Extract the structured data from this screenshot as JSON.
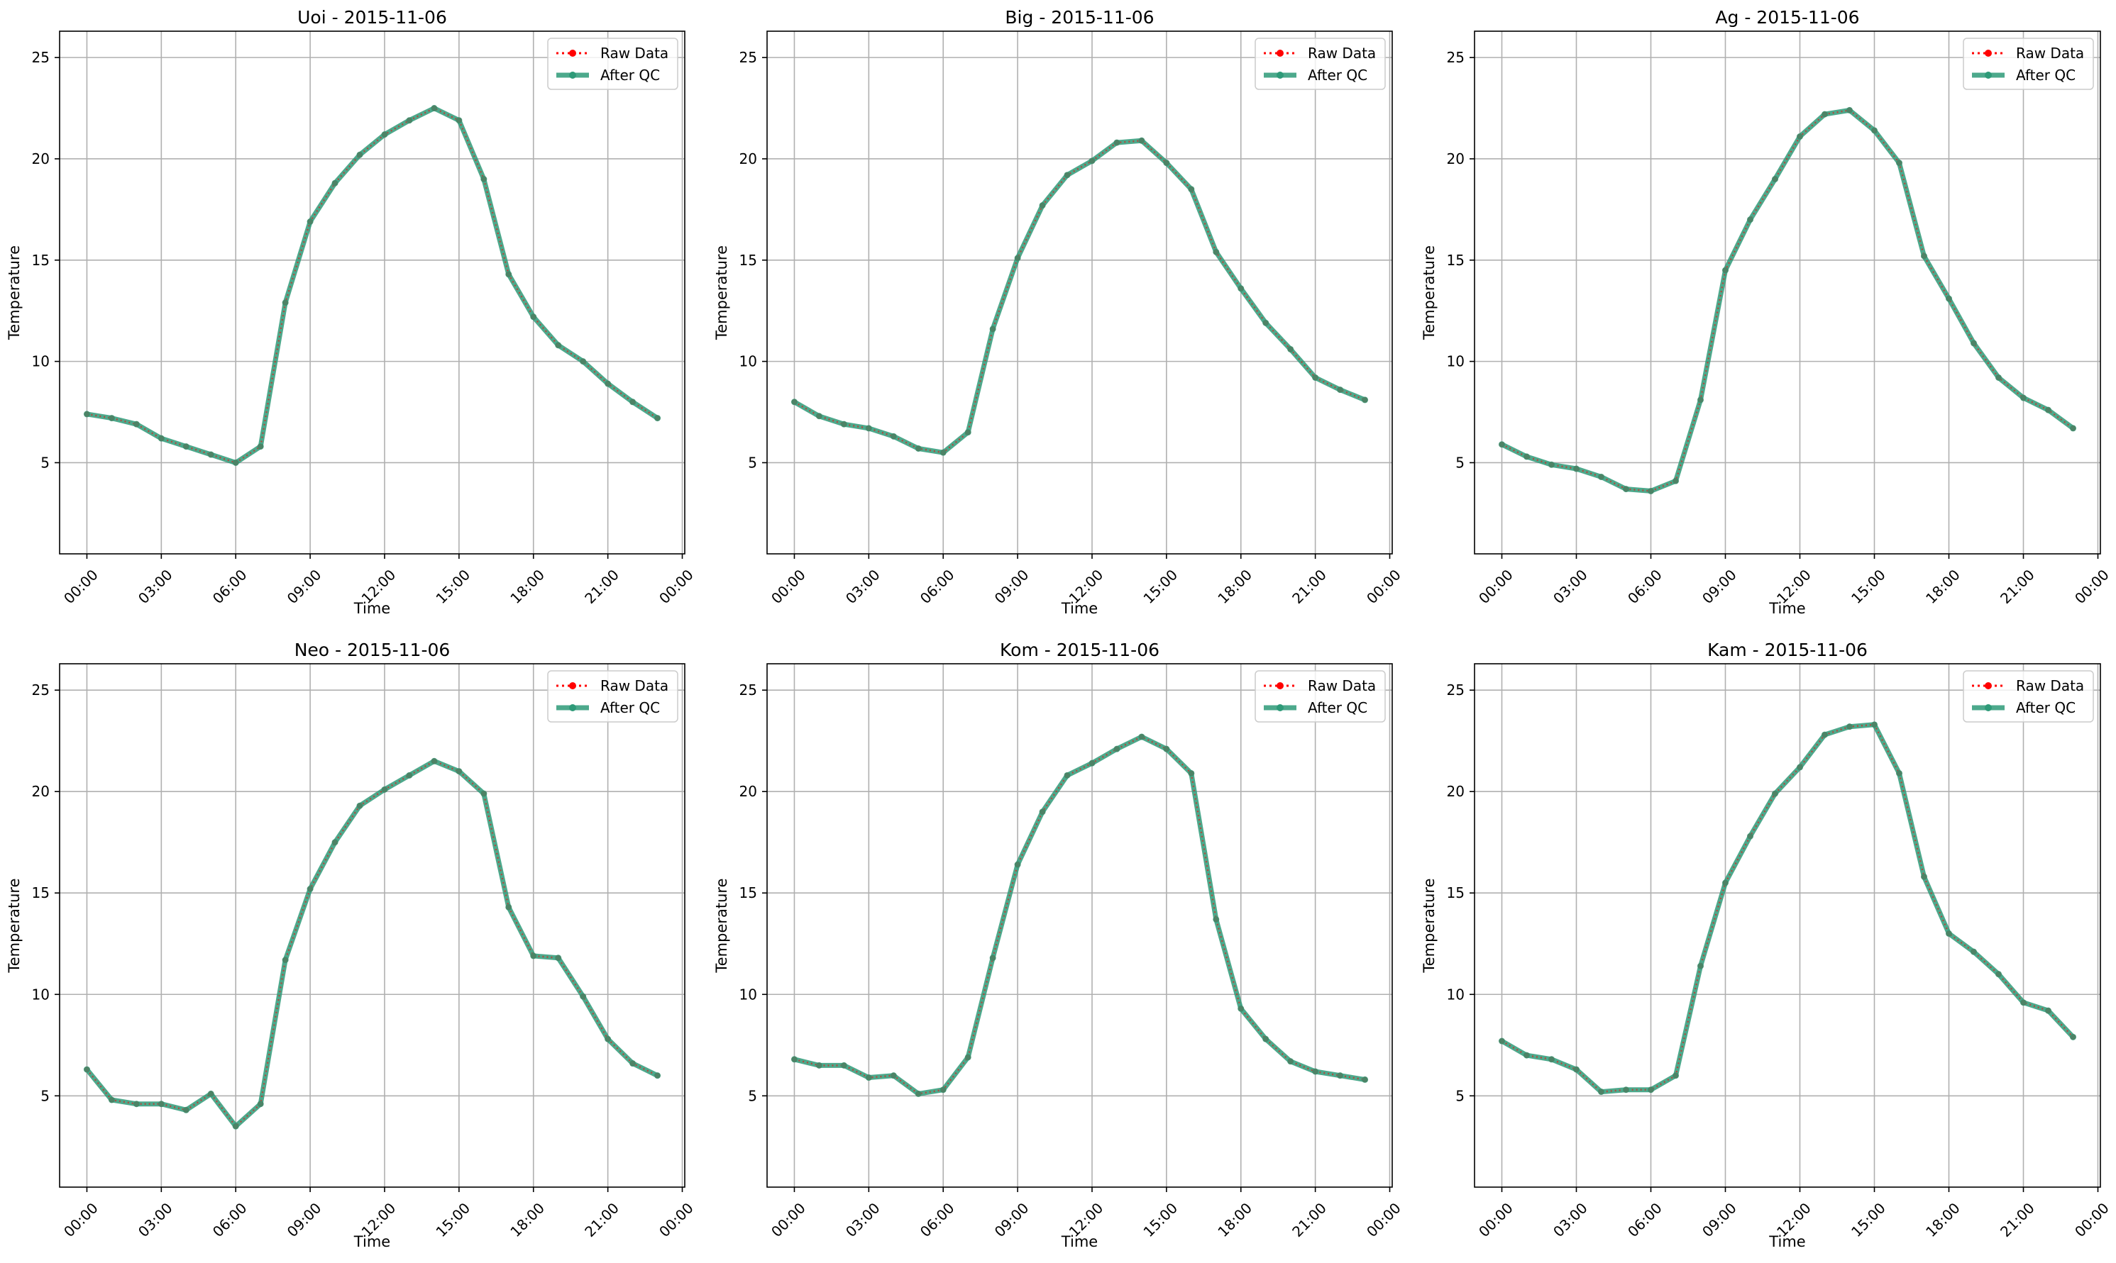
{
  "legend": {
    "raw_label": "Raw Data",
    "qc_label": "After QC"
  },
  "colors": {
    "raw": "#ff0000",
    "qc": "#2e9a78",
    "grid": "#b0b0b0"
  },
  "chart_data": [
    {
      "type": "line",
      "title": "Uoi - 2015-11-06",
      "xlabel": "Time",
      "ylabel": "Temperature",
      "x_unit": "hour",
      "xlim": [
        -1.1,
        24.1
      ],
      "ylim": [
        0.5,
        26.3
      ],
      "xticks": [
        0,
        3,
        6,
        9,
        12,
        15,
        18,
        21,
        24
      ],
      "xtick_labels": [
        "00:00",
        "03:00",
        "06:00",
        "09:00",
        "12:00",
        "15:00",
        "18:00",
        "21:00",
        "00:00"
      ],
      "yticks": [
        5,
        10,
        15,
        20,
        25
      ],
      "grid": true,
      "legend_position": "top-right",
      "x": [
        0,
        1,
        2,
        3,
        4,
        5,
        6,
        7,
        8,
        9,
        10,
        11,
        12,
        13,
        14,
        15,
        16,
        17,
        18,
        19,
        20,
        21,
        22,
        23
      ],
      "series": [
        {
          "name": "Raw Data",
          "values": [
            7.4,
            7.2,
            6.9,
            6.2,
            5.8,
            5.4,
            5.0,
            5.8,
            12.9,
            16.9,
            18.8,
            20.2,
            21.2,
            21.9,
            22.5,
            21.9,
            19.0,
            14.3,
            12.2,
            10.8,
            10.0,
            8.9,
            8.0,
            7.2
          ]
        },
        {
          "name": "After QC",
          "values": [
            7.4,
            7.2,
            6.9,
            6.2,
            5.8,
            5.4,
            5.0,
            5.8,
            12.9,
            16.9,
            18.8,
            20.2,
            21.2,
            21.9,
            22.5,
            21.9,
            19.0,
            14.3,
            12.2,
            10.8,
            10.0,
            8.9,
            8.0,
            7.2
          ]
        }
      ]
    },
    {
      "type": "line",
      "title": "Big - 2015-11-06",
      "xlabel": "Time",
      "ylabel": "Temperature",
      "x_unit": "hour",
      "xlim": [
        -1.1,
        24.1
      ],
      "ylim": [
        0.5,
        26.3
      ],
      "xticks": [
        0,
        3,
        6,
        9,
        12,
        15,
        18,
        21,
        24
      ],
      "xtick_labels": [
        "00:00",
        "03:00",
        "06:00",
        "09:00",
        "12:00",
        "15:00",
        "18:00",
        "21:00",
        "00:00"
      ],
      "yticks": [
        5,
        10,
        15,
        20,
        25
      ],
      "grid": true,
      "legend_position": "top-right",
      "x": [
        0,
        1,
        2,
        3,
        4,
        5,
        6,
        7,
        8,
        9,
        10,
        11,
        12,
        13,
        14,
        15,
        16,
        17,
        18,
        19,
        20,
        21,
        22,
        23
      ],
      "series": [
        {
          "name": "Raw Data",
          "values": [
            8.0,
            7.3,
            6.9,
            6.7,
            6.3,
            5.7,
            5.5,
            6.5,
            11.6,
            15.1,
            17.7,
            19.2,
            19.9,
            20.8,
            20.9,
            19.8,
            18.5,
            15.4,
            13.6,
            11.9,
            10.6,
            9.2,
            8.6,
            8.1
          ]
        },
        {
          "name": "After QC",
          "values": [
            8.0,
            7.3,
            6.9,
            6.7,
            6.3,
            5.7,
            5.5,
            6.5,
            11.6,
            15.1,
            17.7,
            19.2,
            19.9,
            20.8,
            20.9,
            19.8,
            18.5,
            15.4,
            13.6,
            11.9,
            10.6,
            9.2,
            8.6,
            8.1
          ]
        }
      ]
    },
    {
      "type": "line",
      "title": "Ag - 2015-11-06",
      "xlabel": "Time",
      "ylabel": "Temperature",
      "x_unit": "hour",
      "xlim": [
        -1.1,
        24.1
      ],
      "ylim": [
        0.5,
        26.3
      ],
      "xticks": [
        0,
        3,
        6,
        9,
        12,
        15,
        18,
        21,
        24
      ],
      "xtick_labels": [
        "00:00",
        "03:00",
        "06:00",
        "09:00",
        "12:00",
        "15:00",
        "18:00",
        "21:00",
        "00:00"
      ],
      "yticks": [
        5,
        10,
        15,
        20,
        25
      ],
      "grid": true,
      "legend_position": "top-right",
      "x": [
        0,
        1,
        2,
        3,
        4,
        5,
        6,
        7,
        8,
        9,
        10,
        11,
        12,
        13,
        14,
        15,
        16,
        17,
        18,
        19,
        20,
        21,
        22,
        23
      ],
      "series": [
        {
          "name": "Raw Data",
          "values": [
            5.9,
            5.3,
            4.9,
            4.7,
            4.3,
            3.7,
            3.6,
            4.1,
            8.1,
            14.5,
            17.0,
            19.0,
            21.1,
            22.2,
            22.4,
            21.4,
            19.8,
            15.2,
            13.1,
            10.9,
            9.2,
            8.2,
            7.6,
            6.7
          ]
        },
        {
          "name": "After QC",
          "values": [
            5.9,
            5.3,
            4.9,
            4.7,
            4.3,
            3.7,
            3.6,
            4.1,
            8.1,
            14.5,
            17.0,
            19.0,
            21.1,
            22.2,
            22.4,
            21.4,
            19.8,
            15.2,
            13.1,
            10.9,
            9.2,
            8.2,
            7.6,
            6.7
          ]
        }
      ]
    },
    {
      "type": "line",
      "title": "Neo - 2015-11-06",
      "xlabel": "Time",
      "ylabel": "Temperature",
      "x_unit": "hour",
      "xlim": [
        -1.1,
        24.1
      ],
      "ylim": [
        0.5,
        26.3
      ],
      "xticks": [
        0,
        3,
        6,
        9,
        12,
        15,
        18,
        21,
        24
      ],
      "xtick_labels": [
        "00:00",
        "03:00",
        "06:00",
        "09:00",
        "12:00",
        "15:00",
        "18:00",
        "21:00",
        "00:00"
      ],
      "yticks": [
        5,
        10,
        15,
        20,
        25
      ],
      "grid": true,
      "legend_position": "top-right",
      "x": [
        0,
        1,
        2,
        3,
        4,
        5,
        6,
        7,
        8,
        9,
        10,
        11,
        12,
        13,
        14,
        15,
        16,
        17,
        18,
        19,
        20,
        21,
        22,
        23
      ],
      "series": [
        {
          "name": "Raw Data",
          "values": [
            6.3,
            4.8,
            4.6,
            4.6,
            4.3,
            5.1,
            3.5,
            4.6,
            11.7,
            15.2,
            17.5,
            19.3,
            20.1,
            20.8,
            21.5,
            21.0,
            19.9,
            14.3,
            11.9,
            11.8,
            9.9,
            7.8,
            6.6,
            6.0
          ]
        },
        {
          "name": "After QC",
          "values": [
            6.3,
            4.8,
            4.6,
            4.6,
            4.3,
            5.1,
            3.5,
            4.6,
            11.7,
            15.2,
            17.5,
            19.3,
            20.1,
            20.8,
            21.5,
            21.0,
            19.9,
            14.3,
            11.9,
            11.8,
            9.9,
            7.8,
            6.6,
            6.0
          ]
        }
      ]
    },
    {
      "type": "line",
      "title": "Kom - 2015-11-06",
      "xlabel": "Time",
      "ylabel": "Temperature",
      "x_unit": "hour",
      "xlim": [
        -1.1,
        24.1
      ],
      "ylim": [
        0.5,
        26.3
      ],
      "xticks": [
        0,
        3,
        6,
        9,
        12,
        15,
        18,
        21,
        24
      ],
      "xtick_labels": [
        "00:00",
        "03:00",
        "06:00",
        "09:00",
        "12:00",
        "15:00",
        "18:00",
        "21:00",
        "00:00"
      ],
      "yticks": [
        5,
        10,
        15,
        20,
        25
      ],
      "grid": true,
      "legend_position": "top-right",
      "x": [
        0,
        1,
        2,
        3,
        4,
        5,
        6,
        7,
        8,
        9,
        10,
        11,
        12,
        13,
        14,
        15,
        16,
        17,
        18,
        19,
        20,
        21,
        22,
        23
      ],
      "series": [
        {
          "name": "Raw Data",
          "values": [
            6.8,
            6.5,
            6.5,
            5.9,
            6.0,
            5.1,
            5.3,
            6.9,
            11.8,
            16.4,
            19.0,
            20.8,
            21.4,
            22.1,
            22.7,
            22.1,
            20.9,
            13.7,
            9.3,
            7.8,
            6.7,
            6.2,
            6.0,
            5.8
          ]
        },
        {
          "name": "After QC",
          "values": [
            6.8,
            6.5,
            6.5,
            5.9,
            6.0,
            5.1,
            5.3,
            6.9,
            11.8,
            16.4,
            19.0,
            20.8,
            21.4,
            22.1,
            22.7,
            22.1,
            20.9,
            13.7,
            9.3,
            7.8,
            6.7,
            6.2,
            6.0,
            5.8
          ]
        }
      ]
    },
    {
      "type": "line",
      "title": "Kam - 2015-11-06",
      "xlabel": "Time",
      "ylabel": "Temperature",
      "x_unit": "hour",
      "xlim": [
        -1.1,
        24.1
      ],
      "ylim": [
        0.5,
        26.3
      ],
      "xticks": [
        0,
        3,
        6,
        9,
        12,
        15,
        18,
        21,
        24
      ],
      "xtick_labels": [
        "00:00",
        "03:00",
        "06:00",
        "09:00",
        "12:00",
        "15:00",
        "18:00",
        "21:00",
        "00:00"
      ],
      "yticks": [
        5,
        10,
        15,
        20,
        25
      ],
      "grid": true,
      "legend_position": "top-right",
      "x": [
        0,
        1,
        2,
        3,
        4,
        5,
        6,
        7,
        8,
        9,
        10,
        11,
        12,
        13,
        14,
        15,
        16,
        17,
        18,
        19,
        20,
        21,
        22,
        23
      ],
      "series": [
        {
          "name": "Raw Data",
          "values": [
            7.7,
            7.0,
            6.8,
            6.3,
            5.2,
            5.3,
            5.3,
            6.0,
            11.4,
            15.5,
            17.8,
            19.9,
            21.2,
            22.8,
            23.2,
            23.3,
            20.9,
            15.8,
            13.0,
            12.1,
            11.0,
            9.6,
            9.2,
            7.9
          ]
        },
        {
          "name": "After QC",
          "values": [
            7.7,
            7.0,
            6.8,
            6.3,
            5.2,
            5.3,
            5.3,
            6.0,
            11.4,
            15.5,
            17.8,
            19.9,
            21.2,
            22.8,
            23.2,
            23.3,
            20.9,
            15.8,
            13.0,
            12.1,
            11.0,
            9.6,
            9.2,
            7.9
          ]
        }
      ]
    }
  ]
}
